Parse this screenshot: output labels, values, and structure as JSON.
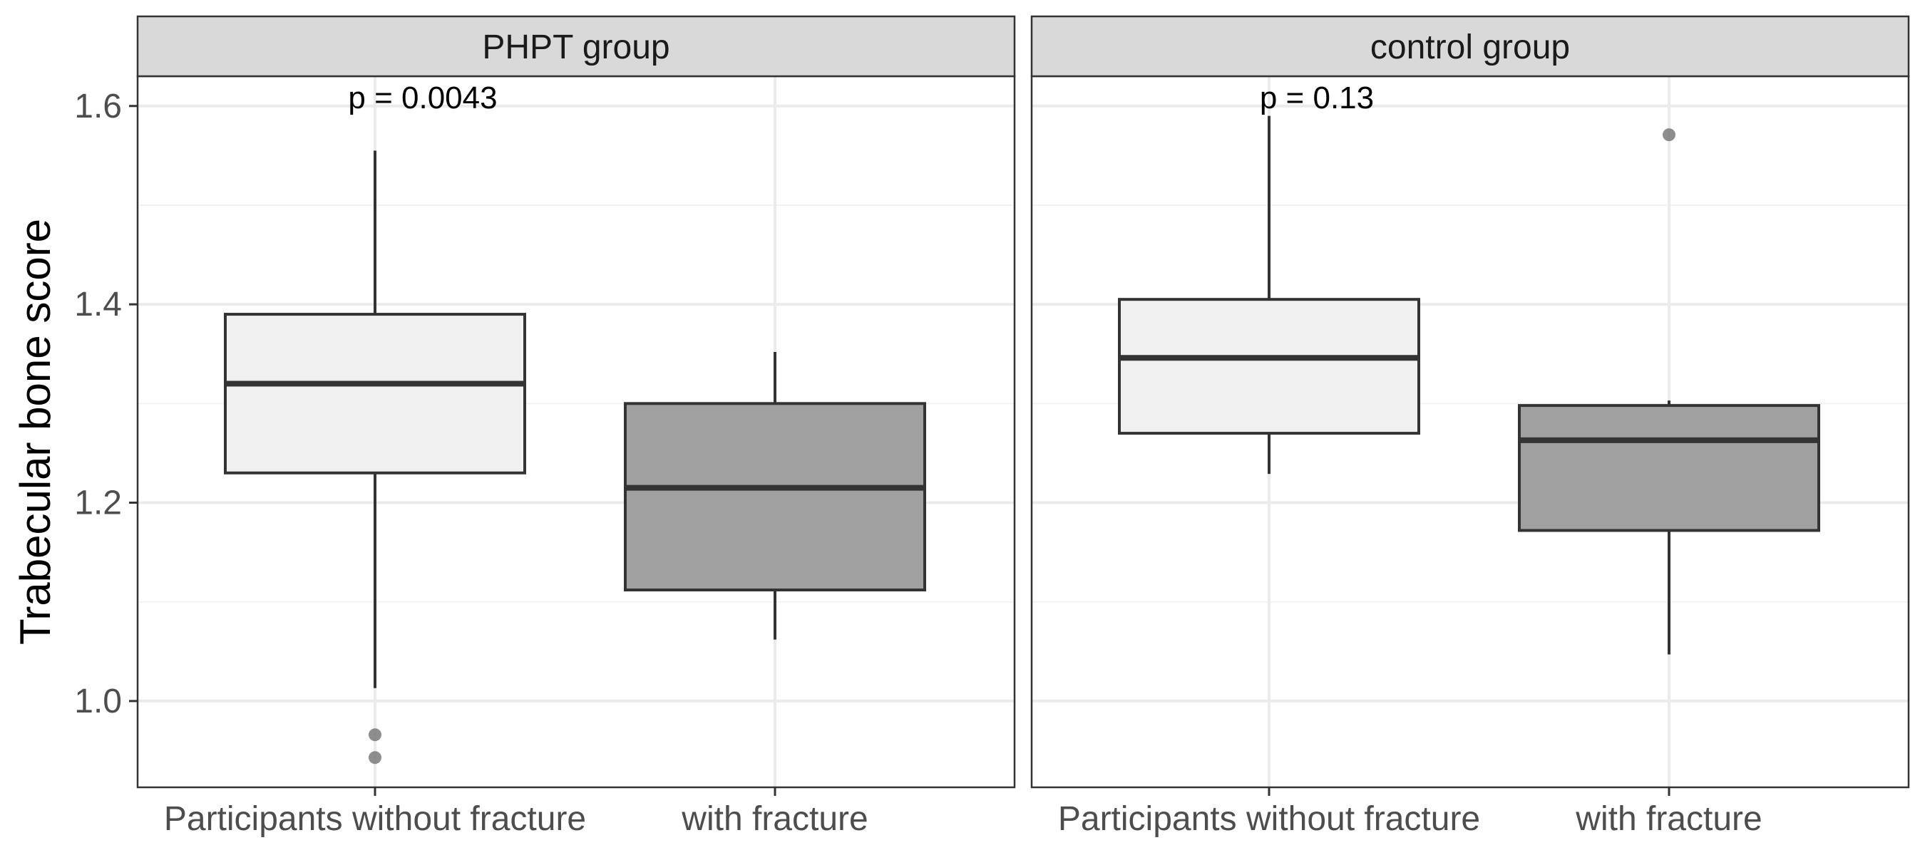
{
  "chart_data": {
    "type": "boxplot",
    "ylabel": "Trabecular bone score",
    "xlabel": "",
    "ylim": [
      0.913,
      1.63
    ],
    "yticks": [
      1.0,
      1.2,
      1.4,
      1.6
    ],
    "ytick_labels": [
      "1.0",
      "1.2",
      "1.4",
      "1.6"
    ],
    "grid": true,
    "categories": [
      "Participants without fracture",
      "with fracture"
    ],
    "fills": [
      "#f0f0f0",
      "#a0a0a0"
    ],
    "panels": [
      {
        "title": "PHPT group",
        "annotation": "p = 0.0043",
        "boxes": [
          {
            "category": "Participants without fracture",
            "q1": 1.23,
            "median": 1.32,
            "q3": 1.39,
            "whisker_low": 1.013,
            "whisker_high": 1.555,
            "outliers": [
              0.966,
              0.943
            ]
          },
          {
            "category": "with fracture",
            "q1": 1.112,
            "median": 1.215,
            "q3": 1.3,
            "whisker_low": 1.062,
            "whisker_high": 1.352,
            "outliers": []
          }
        ]
      },
      {
        "title": "control group",
        "annotation": "p = 0.13",
        "boxes": [
          {
            "category": "Participants without fracture",
            "q1": 1.27,
            "median": 1.346,
            "q3": 1.405,
            "whisker_low": 1.229,
            "whisker_high": 1.59,
            "outliers": []
          },
          {
            "category": "with fracture",
            "q1": 1.172,
            "median": 1.263,
            "q3": 1.298,
            "whisker_low": 1.047,
            "whisker_high": 1.303,
            "outliers": [
              1.571
            ]
          }
        ]
      }
    ]
  }
}
